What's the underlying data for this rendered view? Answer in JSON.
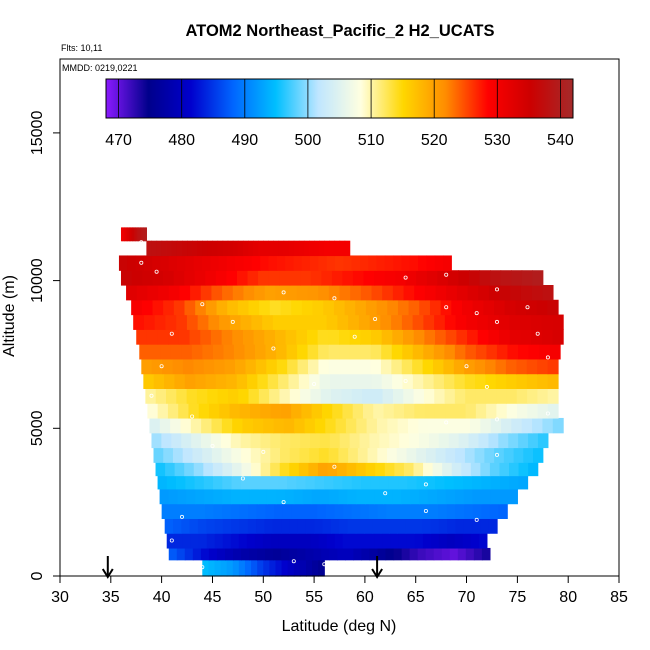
{
  "chart_data": {
    "type": "heatmap",
    "title": "ATOM2 Northeast_Pacific_2 H2_UCATS",
    "flights_note": "Flts: 10,11",
    "date_note": "MMDD: 0219,0221",
    "xlabel": "Latitude (deg N)",
    "ylabel": "Altitude (m)",
    "xlim": [
      30,
      85
    ],
    "ylim": [
      0,
      17500
    ],
    "x_ticks": [
      30,
      35,
      40,
      45,
      50,
      55,
      60,
      65,
      70,
      75,
      80,
      85
    ],
    "y_ticks": [
      0,
      5000,
      10000,
      15000
    ],
    "colorbar": {
      "min": 468,
      "max": 542,
      "ticks": [
        470,
        480,
        490,
        500,
        510,
        520,
        530,
        540
      ],
      "colors": [
        "#8b1aff",
        "#00008b",
        "#0000cd",
        "#0066ff",
        "#00bfff",
        "#bfe6ff",
        "#ffffe0",
        "#ffd700",
        "#ff8c00",
        "#ff0000",
        "#cc0000",
        "#a52a2a"
      ]
    },
    "arrows_latitude": [
      34.7,
      61.2
    ],
    "layers": [
      {
        "alt": 400,
        "lat_min": 44,
        "lat_max": 56,
        "values": [
          495,
          492,
          485,
          480,
          475
        ]
      },
      {
        "alt": 700,
        "lat_min": 40.7,
        "lat_max": 72.3,
        "values": [
          488,
          482,
          478,
          476,
          478,
          480,
          476,
          472,
          470,
          474
        ]
      },
      {
        "alt": 1200,
        "lat_min": 40.5,
        "lat_max": 72,
        "values": [
          484,
          484,
          482,
          480,
          480,
          482,
          482,
          482,
          480,
          482
        ]
      },
      {
        "alt": 1700,
        "lat_min": 40.3,
        "lat_max": 73,
        "values": [
          488,
          486,
          485,
          484,
          484,
          485,
          485,
          485,
          484,
          484
        ]
      },
      {
        "alt": 2200,
        "lat_min": 40,
        "lat_max": 74,
        "values": [
          490,
          490,
          489,
          488,
          488,
          489,
          490,
          490,
          489,
          488
        ]
      },
      {
        "alt": 2700,
        "lat_min": 39.8,
        "lat_max": 75,
        "values": [
          492,
          493,
          494,
          494,
          493,
          494,
          494,
          493,
          492,
          492
        ]
      },
      {
        "alt": 3200,
        "lat_min": 39.6,
        "lat_max": 76,
        "values": [
          494,
          496,
          498,
          498,
          497,
          496,
          496,
          495,
          494,
          493
        ]
      },
      {
        "alt": 3600,
        "lat_min": 39.4,
        "lat_max": 77,
        "values": [
          495,
          500,
          506,
          514,
          520,
          516,
          512,
          504,
          498,
          494
        ]
      },
      {
        "alt": 4100,
        "lat_min": 39.2,
        "lat_max": 77.5,
        "values": [
          498,
          503,
          508,
          512,
          514,
          510,
          506,
          502,
          498,
          495
        ]
      },
      {
        "alt": 4600,
        "lat_min": 39,
        "lat_max": 78,
        "values": [
          500,
          505,
          510,
          512,
          513,
          510,
          508,
          505,
          500,
          496
        ]
      },
      {
        "alt": 5100,
        "lat_min": 38.8,
        "lat_max": 79.5,
        "values": [
          504,
          510,
          516,
          518,
          514,
          510,
          508,
          508,
          503,
          499
        ]
      },
      {
        "alt": 5600,
        "lat_min": 38.6,
        "lat_max": 79,
        "values": [
          508,
          514,
          518,
          520,
          515,
          510,
          512,
          512,
          508,
          505
        ]
      },
      {
        "alt": 6100,
        "lat_min": 38.4,
        "lat_max": 79,
        "values": [
          510,
          514,
          516,
          510,
          505,
          503,
          508,
          512,
          512,
          510
        ]
      },
      {
        "alt": 6600,
        "lat_min": 38.2,
        "lat_max": 79,
        "values": [
          516,
          520,
          518,
          512,
          506,
          506,
          510,
          514,
          516,
          518
        ]
      },
      {
        "alt": 7100,
        "lat_min": 38,
        "lat_max": 79,
        "values": [
          520,
          522,
          520,
          515,
          508,
          508,
          514,
          520,
          524,
          526
        ]
      },
      {
        "alt": 7600,
        "lat_min": 37.8,
        "lat_max": 79.2,
        "values": [
          524,
          524,
          522,
          518,
          512,
          512,
          518,
          524,
          528,
          530
        ]
      },
      {
        "alt": 8100,
        "lat_min": 37.5,
        "lat_max": 79.5,
        "values": [
          526,
          526,
          522,
          518,
          514,
          516,
          522,
          527,
          532,
          534
        ]
      },
      {
        "alt": 8600,
        "lat_min": 37.2,
        "lat_max": 79.5,
        "values": [
          528,
          526,
          520,
          516,
          516,
          520,
          525,
          530,
          533,
          534
        ]
      },
      {
        "alt": 9100,
        "lat_min": 37,
        "lat_max": 79,
        "values": [
          530,
          526,
          518,
          514,
          516,
          520,
          524,
          530,
          534,
          536
        ]
      },
      {
        "alt": 9600,
        "lat_min": 36.5,
        "lat_max": 78.5,
        "values": [
          533,
          530,
          524,
          520,
          521,
          524,
          528,
          532,
          536,
          538
        ]
      },
      {
        "alt": 10100,
        "lat_min": 36,
        "lat_max": 77.5,
        "values": [
          536,
          534,
          530,
          526,
          526,
          528,
          530,
          534,
          538,
          540
        ]
      },
      {
        "alt": 10600,
        "lat_min": 35.8,
        "lat_max": 68.5,
        "values": [
          536,
          534,
          532,
          530,
          528,
          527,
          526,
          527,
          528,
          530
        ]
      },
      {
        "alt": 11100,
        "lat_min": 38.5,
        "lat_max": 58.5,
        "values": [
          538,
          537,
          536,
          535,
          534,
          532,
          532,
          531,
          530,
          530
        ]
      },
      {
        "alt": 11600,
        "lat_min": 36,
        "lat_max": 38.5,
        "values": [
          530,
          534,
          538,
          540
        ]
      }
    ],
    "sample_points": [
      [
        44,
        300
      ],
      [
        53,
        500
      ],
      [
        56,
        400
      ],
      [
        41,
        1200
      ],
      [
        42,
        2000
      ],
      [
        52,
        2500
      ],
      [
        48,
        3300
      ],
      [
        62,
        2800
      ],
      [
        66,
        3100
      ],
      [
        71,
        1900
      ],
      [
        66,
        2200
      ],
      [
        73,
        4100
      ],
      [
        45,
        4400
      ],
      [
        50,
        4200
      ],
      [
        57,
        3700
      ],
      [
        43,
        5400
      ],
      [
        68,
        5200
      ],
      [
        73,
        5300
      ],
      [
        78,
        5500
      ],
      [
        39,
        6100
      ],
      [
        55,
        6500
      ],
      [
        64,
        6600
      ],
      [
        72,
        6400
      ],
      [
        40,
        7100
      ],
      [
        51,
        7700
      ],
      [
        59,
        8100
      ],
      [
        70,
        7100
      ],
      [
        77,
        8200
      ],
      [
        78,
        7400
      ],
      [
        41,
        8200
      ],
      [
        47,
        8600
      ],
      [
        57,
        9400
      ],
      [
        68,
        9100
      ],
      [
        73,
        8600
      ],
      [
        44,
        9200
      ],
      [
        52,
        9600
      ],
      [
        61,
        8700
      ],
      [
        71,
        8900
      ],
      [
        76,
        9100
      ],
      [
        79,
        9500
      ],
      [
        38,
        10600
      ],
      [
        39.5,
        10300
      ],
      [
        68,
        10200
      ],
      [
        73,
        9700
      ],
      [
        64,
        10100
      ],
      [
        36.5,
        11000
      ],
      [
        38,
        11300
      ],
      [
        39.5,
        11600
      ],
      [
        40.5,
        11700
      ],
      [
        37,
        11900
      ]
    ]
  }
}
